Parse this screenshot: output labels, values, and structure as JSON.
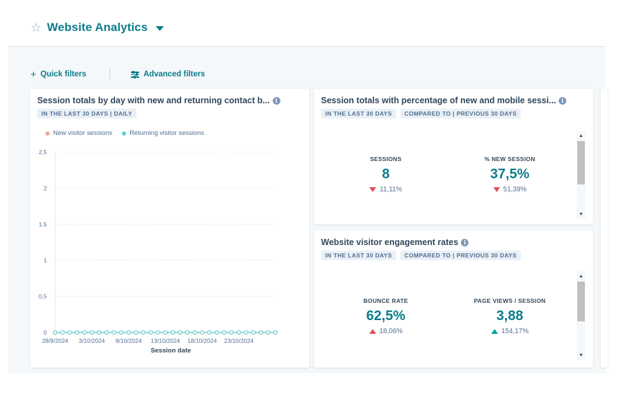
{
  "header": {
    "title": "Website Analytics",
    "star_icon": "star-outline-icon",
    "dropdown_icon": "caret-down-icon"
  },
  "filters": {
    "quick_label": "Quick filters",
    "advanced_label": "Advanced filters"
  },
  "colors": {
    "accent": "#0b7c8c",
    "new_visitor": "#f2a494",
    "returning_visitor": "#5ccfd0",
    "negative": "#e14e5f",
    "positive": "#00a4a0"
  },
  "cards": {
    "chart_card": {
      "title": "Session totals by day with new and returning contact b...",
      "tags": [
        "IN THE LAST 30 DAYS | DAILY"
      ]
    },
    "sessions_card": {
      "title": "Session totals with percentage of new and mobile sessi...",
      "tags": [
        "IN THE LAST 30 DAYS",
        "COMPARED TO | PREVIOUS 30 DAYS"
      ],
      "kpis": [
        {
          "label": "SESSIONS",
          "value": "8",
          "change": "11,11%",
          "direction": "down"
        },
        {
          "label": "% NEW SESSION",
          "value": "37,5%",
          "change": "51,39%",
          "direction": "down"
        }
      ]
    },
    "engagement_card": {
      "title": "Website visitor engagement rates",
      "tags": [
        "IN THE LAST 30 DAYS",
        "COMPARED TO | PREVIOUS 30 DAYS"
      ],
      "kpis": [
        {
          "label": "BOUNCE RATE",
          "value": "62,5%",
          "change": "18,06%",
          "direction": "up"
        },
        {
          "label": "PAGE VIEWS / SESSION",
          "value": "3,88",
          "change": "154,17%",
          "direction": "up"
        }
      ]
    }
  },
  "chart_data": {
    "type": "area",
    "xlabel": "Session date",
    "ylabel": "",
    "ylim": [
      0,
      2.5
    ],
    "yticks": [
      0,
      0.5,
      1,
      1.5,
      2,
      2.5
    ],
    "ytick_labels": [
      "0",
      "0,5",
      "1",
      "1,5",
      "2",
      "2,5"
    ],
    "xtick_labels": [
      "28/9/2024",
      "3/10/2024",
      "8/10/2024",
      "13/10/2024",
      "18/10/2024",
      "23/10/2024"
    ],
    "xtick_indices": [
      0,
      5,
      10,
      15,
      20,
      25
    ],
    "legend_position": "top-left",
    "grid": true,
    "series": [
      {
        "name": "New visitor sessions",
        "values": [
          0,
          0,
          0,
          0,
          0,
          0,
          0,
          0,
          0,
          0,
          0,
          0,
          0,
          0,
          0,
          0,
          0,
          0,
          0,
          0,
          0,
          0,
          0,
          0,
          0,
          0,
          0,
          0,
          0,
          0,
          0
        ],
        "color": "#f2a494"
      },
      {
        "name": "Returning visitor sessions",
        "values": [
          0,
          0,
          0,
          0,
          0,
          0,
          0,
          0,
          0,
          0,
          0,
          0,
          0,
          0,
          0,
          0,
          0,
          0,
          0,
          0,
          0,
          0,
          0,
          0,
          0,
          0,
          0,
          0,
          0,
          0,
          0
        ],
        "color": "#5ccfd0"
      }
    ]
  }
}
